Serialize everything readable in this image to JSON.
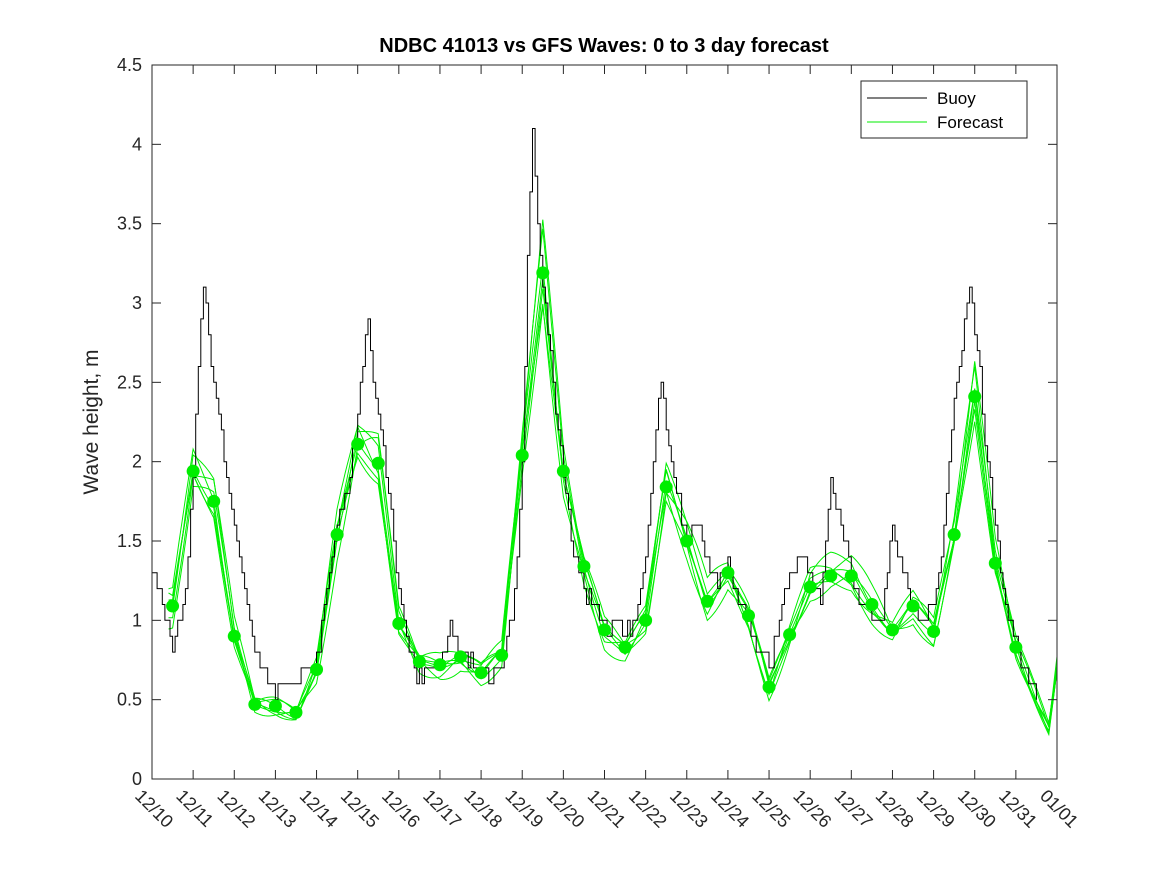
{
  "chart_data": {
    "type": "line",
    "title": "NDBC 41013 vs GFS Waves: 0 to 3 day forecast",
    "xlabel": "",
    "ylabel": "Wave height, m",
    "ylim": [
      0,
      4.5
    ],
    "yticks": [
      "0",
      "0.5",
      "1",
      "1.5",
      "2",
      "2.5",
      "3",
      "3.5",
      "4",
      "4.5"
    ],
    "xlim": [
      0,
      22
    ],
    "xtick_labels": [
      "12/10",
      "12/11",
      "12/12",
      "12/13",
      "12/14",
      "12/15",
      "12/16",
      "12/17",
      "12/18",
      "12/19",
      "12/20",
      "12/21",
      "12/22",
      "12/23",
      "12/24",
      "12/25",
      "12/26",
      "12/27",
      "12/28",
      "12/29",
      "12/30",
      "12/31",
      "01/01"
    ],
    "legend": {
      "position": "top-right",
      "entries": [
        "Buoy",
        "Forecast"
      ]
    },
    "colors": {
      "buoy": "#000000",
      "forecast": "#00ee00",
      "axis": "#262626"
    },
    "series": [
      {
        "name": "Buoy",
        "x": [
          0,
          0.125,
          0.25,
          0.375,
          0.5,
          0.625,
          0.75,
          0.875,
          1,
          1.125,
          1.25,
          1.375,
          1.5,
          1.75,
          2,
          2.25,
          2.5,
          3,
          3.5,
          3.75,
          4,
          4.25,
          4.5,
          4.75,
          5,
          5.125,
          5.25,
          5.375,
          5.5,
          5.75,
          6,
          6.25,
          6.5,
          6.75,
          7,
          7.25,
          7.5,
          7.75,
          8,
          8.25,
          8.5,
          8.75,
          8.875,
          9,
          9.125,
          9.25,
          9.375,
          9.5,
          9.75,
          10,
          10.25,
          10.5,
          10.75,
          11,
          11.25,
          11.5,
          11.75,
          12,
          12.25,
          12.375,
          12.5,
          12.75,
          13,
          13.25,
          13.5,
          13.75,
          14,
          14.25,
          14.5,
          14.75,
          15,
          15.25,
          15.5,
          15.75,
          16,
          16.25,
          16.5,
          16.75,
          17,
          17.25,
          17.5,
          17.75,
          18,
          18.25,
          18.5,
          18.75,
          19,
          19.25,
          19.5,
          19.75,
          19.875,
          20,
          20.125,
          20.25,
          20.5,
          20.75,
          21,
          21.25,
          21.5
        ],
        "values": [
          1.25,
          1.2,
          1.1,
          1.0,
          0.85,
          0.95,
          1.1,
          1.4,
          1.9,
          2.6,
          3.1,
          2.8,
          2.5,
          2.0,
          1.6,
          1.2,
          0.8,
          0.55,
          0.65,
          0.7,
          0.75,
          1.2,
          1.6,
          1.8,
          2.3,
          2.6,
          2.9,
          2.5,
          2.3,
          1.8,
          1.2,
          0.8,
          0.65,
          0.7,
          0.75,
          0.95,
          0.8,
          0.72,
          0.7,
          0.62,
          0.75,
          1.0,
          1.4,
          2.0,
          3.3,
          4.1,
          3.5,
          3.1,
          2.5,
          1.9,
          1.4,
          1.2,
          1.1,
          0.95,
          0.95,
          0.95,
          1.0,
          1.4,
          2.2,
          2.5,
          2.2,
          1.8,
          1.5,
          1.6,
          1.4,
          1.2,
          1.4,
          1.1,
          1.0,
          0.8,
          0.7,
          1.0,
          1.3,
          1.4,
          1.3,
          1.1,
          1.9,
          1.6,
          1.3,
          1.1,
          1.05,
          1.0,
          1.6,
          1.3,
          1.1,
          1.0,
          1.1,
          1.6,
          2.4,
          2.9,
          3.1,
          2.8,
          2.6,
          2.1,
          1.6,
          1.1,
          0.85,
          0.65,
          0.5
        ]
      },
      {
        "name": "Forecast",
        "x": [
          0.5,
          1,
          1.5,
          2,
          2.5,
          3,
          3.5,
          4,
          4.5,
          5,
          5.5,
          6,
          6.5,
          7,
          7.5,
          8,
          8.5,
          9,
          9.5,
          10,
          10.5,
          11,
          11.5,
          12,
          12.5,
          13,
          13.5,
          14,
          14.5,
          15,
          15.5,
          16,
          16.5,
          17,
          17.5,
          18,
          18.5,
          19,
          19.5,
          20,
          20.5,
          21
        ],
        "values": [
          1.09,
          1.94,
          1.75,
          0.9,
          0.47,
          0.46,
          0.42,
          0.69,
          1.54,
          2.11,
          1.99,
          0.98,
          0.74,
          0.72,
          0.77,
          0.67,
          0.78,
          2.04,
          3.19,
          1.94,
          1.34,
          0.94,
          0.83,
          1.0,
          1.84,
          1.5,
          1.12,
          1.3,
          1.03,
          0.58,
          0.91,
          1.21,
          1.28,
          1.28,
          1.1,
          0.94,
          1.09,
          0.93,
          1.54,
          2.41,
          1.36,
          0.83
        ]
      }
    ]
  }
}
